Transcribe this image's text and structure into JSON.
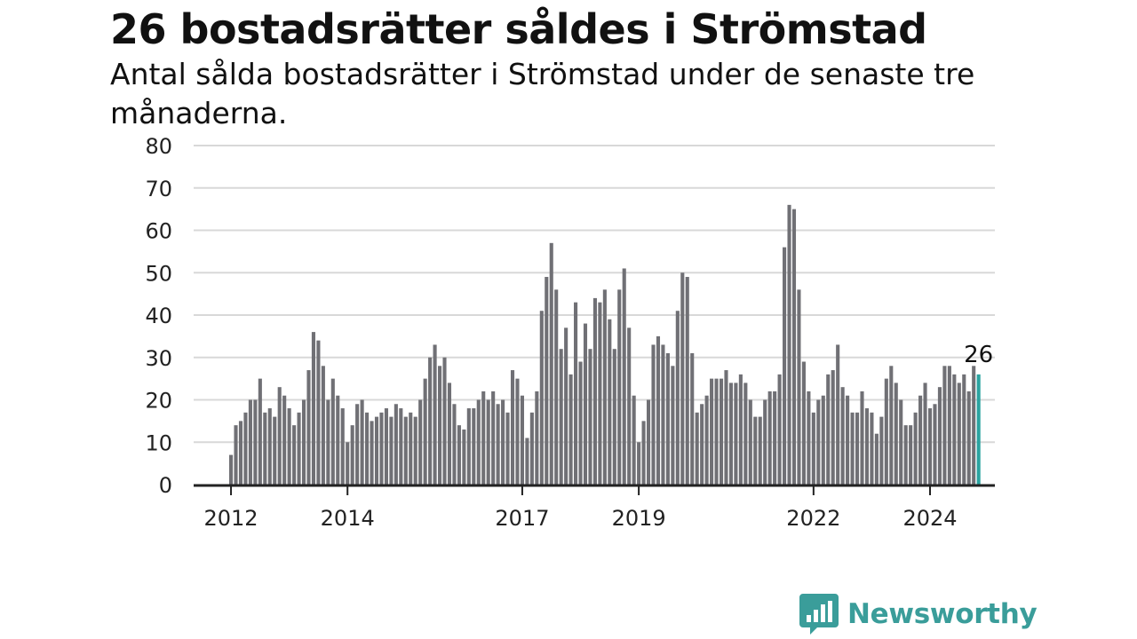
{
  "title": "26 bostadsrätter såldes i Strömstad",
  "subtitle": "Antal sålda bostadsrätter i Strömstad under de senaste tre månaderna.",
  "brand": {
    "name": "Newsworthy",
    "icon": "newsworthy-chart-bubble-icon",
    "color": "#3a9d9a"
  },
  "colors": {
    "bar": "#707075",
    "highlight": "#2aa3a0",
    "grid": "#d8d8d8",
    "axis": "#222222"
  },
  "chart_data": {
    "type": "bar",
    "title": "26 bostadsrätter såldes i Strömstad",
    "subtitle": "Antal sålda bostadsrätter i Strömstad under de senaste tre månaderna.",
    "xlabel": "",
    "ylabel": "",
    "ylim": [
      0,
      80
    ],
    "yticks": [
      0,
      10,
      20,
      30,
      40,
      50,
      60,
      70,
      80
    ],
    "x_start": "2012-01",
    "xtick_labels": [
      {
        "label": "2012",
        "month": "2012-01"
      },
      {
        "label": "2014",
        "month": "2014-01"
      },
      {
        "label": "2017",
        "month": "2017-01"
      },
      {
        "label": "2019",
        "month": "2019-01"
      },
      {
        "label": "2022",
        "month": "2022-01"
      },
      {
        "label": "2024",
        "month": "2024-01"
      }
    ],
    "grid": true,
    "values": [
      7,
      14,
      15,
      17,
      20,
      20,
      25,
      17,
      18,
      16,
      23,
      21,
      18,
      14,
      17,
      20,
      27,
      36,
      34,
      28,
      20,
      25,
      21,
      18,
      10,
      14,
      19,
      20,
      17,
      15,
      16,
      17,
      18,
      16,
      19,
      18,
      16,
      17,
      16,
      20,
      25,
      30,
      33,
      28,
      30,
      24,
      19,
      14,
      13,
      18,
      18,
      20,
      22,
      20,
      22,
      19,
      20,
      17,
      27,
      25,
      21,
      11,
      17,
      22,
      41,
      49,
      57,
      46,
      32,
      37,
      26,
      43,
      29,
      38,
      32,
      44,
      43,
      46,
      39,
      32,
      46,
      51,
      37,
      21,
      10,
      15,
      20,
      33,
      35,
      33,
      31,
      28,
      41,
      50,
      49,
      31,
      17,
      19,
      21,
      25,
      25,
      25,
      27,
      24,
      24,
      26,
      24,
      20,
      16,
      16,
      20,
      22,
      22,
      26,
      56,
      66,
      65,
      46,
      29,
      22,
      17,
      20,
      21,
      26,
      27,
      33,
      23,
      21,
      17,
      17,
      22,
      18,
      17,
      12,
      16,
      25,
      28,
      24,
      20,
      14,
      14,
      17,
      21,
      24,
      18,
      19,
      23,
      28,
      28,
      26,
      24,
      26,
      22,
      28,
      26
    ],
    "highlight_last": true,
    "highlight_label": "26"
  }
}
